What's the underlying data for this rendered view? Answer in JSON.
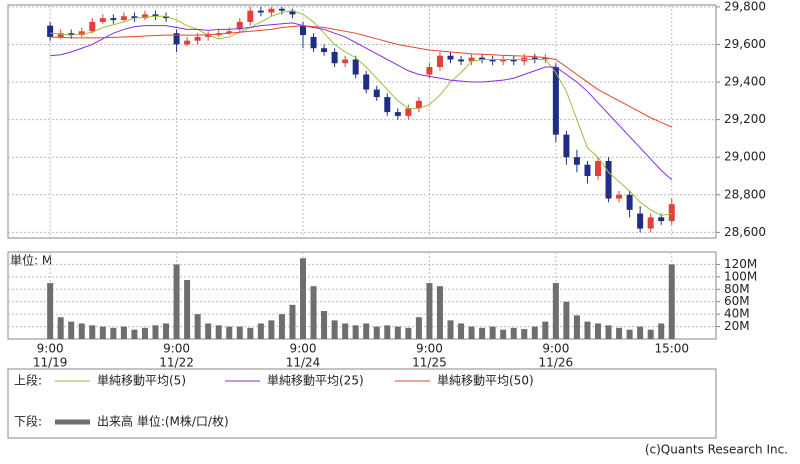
{
  "chart_data": [
    {
      "type": "candlestick",
      "xlim": [
        -4,
        63.2
      ],
      "xticks": [
        {
          "value": 0,
          "label": "9:00",
          "date": "11/19"
        },
        {
          "value": 12,
          "label": "9:00",
          "date": "11/22"
        },
        {
          "value": 24,
          "label": "9:00",
          "date": "11/24"
        },
        {
          "value": 36,
          "label": "9:00",
          "date": "11/25"
        },
        {
          "value": 48,
          "label": "9:00",
          "date": "11/26"
        },
        {
          "value": 59,
          "label": "15:00"
        }
      ],
      "ylim": [
        28570,
        29810
      ],
      "yticks": [
        {
          "value": 28600,
          "label": "28,600"
        },
        {
          "value": 28800,
          "label": "28,800"
        },
        {
          "value": 29000,
          "label": "29,000"
        },
        {
          "value": 29200,
          "label": "29,200"
        },
        {
          "value": 29400,
          "label": "29,400"
        },
        {
          "value": 29600,
          "label": "29,600"
        },
        {
          "value": 29800,
          "label": "29,800"
        }
      ],
      "grid": true,
      "up_color": "#e0413a",
      "down_color": "#1f2d86",
      "open": [
        29700,
        29640,
        29660,
        29650,
        29670,
        29720,
        29740,
        29730,
        29750,
        29740,
        29760,
        29750,
        29660,
        29600,
        29620,
        29640,
        29650,
        29660,
        29680,
        29720,
        29780,
        29770,
        29790,
        29780,
        29700,
        29640,
        29580,
        29560,
        29500,
        29520,
        29440,
        29360,
        29320,
        29240,
        29220,
        29260,
        29440,
        29480,
        29540,
        29520,
        29510,
        29530,
        29520,
        29510,
        29520,
        29510,
        29530,
        29520,
        29480,
        29120,
        29000,
        28960,
        28900,
        28980,
        28780,
        28800,
        28700,
        28620,
        28680,
        28660
      ],
      "close": [
        29640,
        29660,
        29650,
        29670,
        29720,
        29740,
        29730,
        29750,
        29740,
        29760,
        29750,
        29740,
        29600,
        29620,
        29640,
        29650,
        29660,
        29670,
        29720,
        29780,
        29770,
        29790,
        29780,
        29760,
        29650,
        29580,
        29560,
        29500,
        29520,
        29440,
        29360,
        29320,
        29240,
        29220,
        29260,
        29300,
        29480,
        29540,
        29520,
        29510,
        29530,
        29520,
        29510,
        29520,
        29510,
        29530,
        29520,
        29530,
        29120,
        29000,
        28960,
        28900,
        28980,
        28780,
        28800,
        28720,
        28620,
        28680,
        28660,
        28750
      ],
      "high": [
        29720,
        29680,
        29680,
        29690,
        29740,
        29760,
        29760,
        29770,
        29770,
        29780,
        29780,
        29770,
        29680,
        29640,
        29660,
        29670,
        29680,
        29690,
        29740,
        29800,
        29800,
        29800,
        29800,
        29790,
        29720,
        29660,
        29600,
        29580,
        29540,
        29540,
        29460,
        29380,
        29340,
        29260,
        29280,
        29320,
        29500,
        29560,
        29560,
        29540,
        29550,
        29550,
        29540,
        29540,
        29540,
        29550,
        29550,
        29550,
        29500,
        29140,
        29040,
        28980,
        29000,
        29000,
        28820,
        28820,
        28740,
        28700,
        28700,
        28780
      ],
      "low": [
        29620,
        29630,
        29630,
        29640,
        29660,
        29710,
        29710,
        29720,
        29720,
        29730,
        29730,
        29720,
        29560,
        29590,
        29600,
        29620,
        29640,
        29650,
        29660,
        29700,
        29750,
        29750,
        29760,
        29740,
        29580,
        29560,
        29540,
        29480,
        29480,
        29420,
        29340,
        29300,
        29220,
        29200,
        29200,
        29240,
        29420,
        29460,
        29500,
        29490,
        29490,
        29500,
        29490,
        29490,
        29490,
        29490,
        29500,
        29500,
        29080,
        28960,
        28920,
        28860,
        28880,
        28760,
        28760,
        28680,
        28600,
        28600,
        28640,
        28640
      ],
      "legend_label": "上段:",
      "series": [
        {
          "name": "単純移動平均(5)",
          "color": "#9ac03c",
          "values": [
            29660,
            29655,
            29650,
            29655,
            29665,
            29690,
            29705,
            29720,
            29740,
            29745,
            29750,
            29750,
            29730,
            29700,
            29680,
            29650,
            29630,
            29640,
            29665,
            29690,
            29720,
            29750,
            29770,
            29780,
            29760,
            29720,
            29660,
            29600,
            29560,
            29530,
            29480,
            29420,
            29360,
            29300,
            29260,
            29260,
            29280,
            29330,
            29400,
            29450,
            29510,
            29520,
            29520,
            29520,
            29520,
            29520,
            29520,
            29520,
            29450,
            29350,
            29200,
            29050,
            29000,
            28920,
            28870,
            28820,
            28760,
            28720,
            28690,
            28700
          ]
        },
        {
          "name": "単純移動平均(25)",
          "color": "#8a2be2",
          "values": [
            29540,
            29545,
            29560,
            29580,
            29600,
            29630,
            29660,
            29680,
            29695,
            29700,
            29700,
            29700,
            29690,
            29680,
            29680,
            29675,
            29680,
            29680,
            29685,
            29690,
            29700,
            29705,
            29710,
            29715,
            29700,
            29690,
            29680,
            29660,
            29640,
            29610,
            29580,
            29550,
            29520,
            29490,
            29460,
            29440,
            29430,
            29420,
            29410,
            29405,
            29400,
            29400,
            29405,
            29410,
            29420,
            29440,
            29460,
            29480,
            29480,
            29440,
            29400,
            29350,
            29290,
            29230,
            29170,
            29110,
            29050,
            28990,
            28930,
            28880
          ]
        },
        {
          "name": "単純移動平均(50)",
          "color": "#e8452c",
          "values": [
            29640,
            29638,
            29636,
            29635,
            29635,
            29636,
            29638,
            29640,
            29642,
            29645,
            29648,
            29650,
            29650,
            29650,
            29650,
            29652,
            29655,
            29660,
            29665,
            29670,
            29675,
            29680,
            29690,
            29695,
            29700,
            29695,
            29690,
            29680,
            29670,
            29660,
            29645,
            29630,
            29615,
            29600,
            29590,
            29580,
            29570,
            29565,
            29560,
            29555,
            29550,
            29548,
            29545,
            29542,
            29540,
            29538,
            29535,
            29530,
            29520,
            29480,
            29440,
            29400,
            29360,
            29330,
            29300,
            29270,
            29240,
            29210,
            29185,
            29160
          ]
        }
      ]
    },
    {
      "type": "bar",
      "y_label": "単位: M",
      "ylim": [
        0,
        140
      ],
      "yticks": [
        {
          "value": 20,
          "label": "20M"
        },
        {
          "value": 40,
          "label": "40M"
        },
        {
          "value": 60,
          "label": "60M"
        },
        {
          "value": 80,
          "label": "80M"
        },
        {
          "value": 100,
          "label": "100M"
        },
        {
          "value": 120,
          "label": "120M"
        }
      ],
      "grid": true,
      "legend_label": "下段:",
      "series": [
        {
          "name": "出来高 単位:(M株/口/枚)",
          "color": "#6e6e6e",
          "values": [
            90,
            35,
            28,
            25,
            22,
            20,
            18,
            20,
            15,
            18,
            22,
            25,
            120,
            95,
            40,
            25,
            22,
            20,
            20,
            18,
            25,
            30,
            40,
            55,
            130,
            85,
            45,
            30,
            25,
            22,
            25,
            20,
            22,
            20,
            18,
            35,
            90,
            85,
            30,
            25,
            20,
            18,
            20,
            15,
            18,
            16,
            20,
            28,
            90,
            60,
            38,
            28,
            25,
            22,
            18,
            15,
            20,
            15,
            25,
            120
          ]
        }
      ]
    }
  ],
  "footer": "(c)Quants Research Inc."
}
